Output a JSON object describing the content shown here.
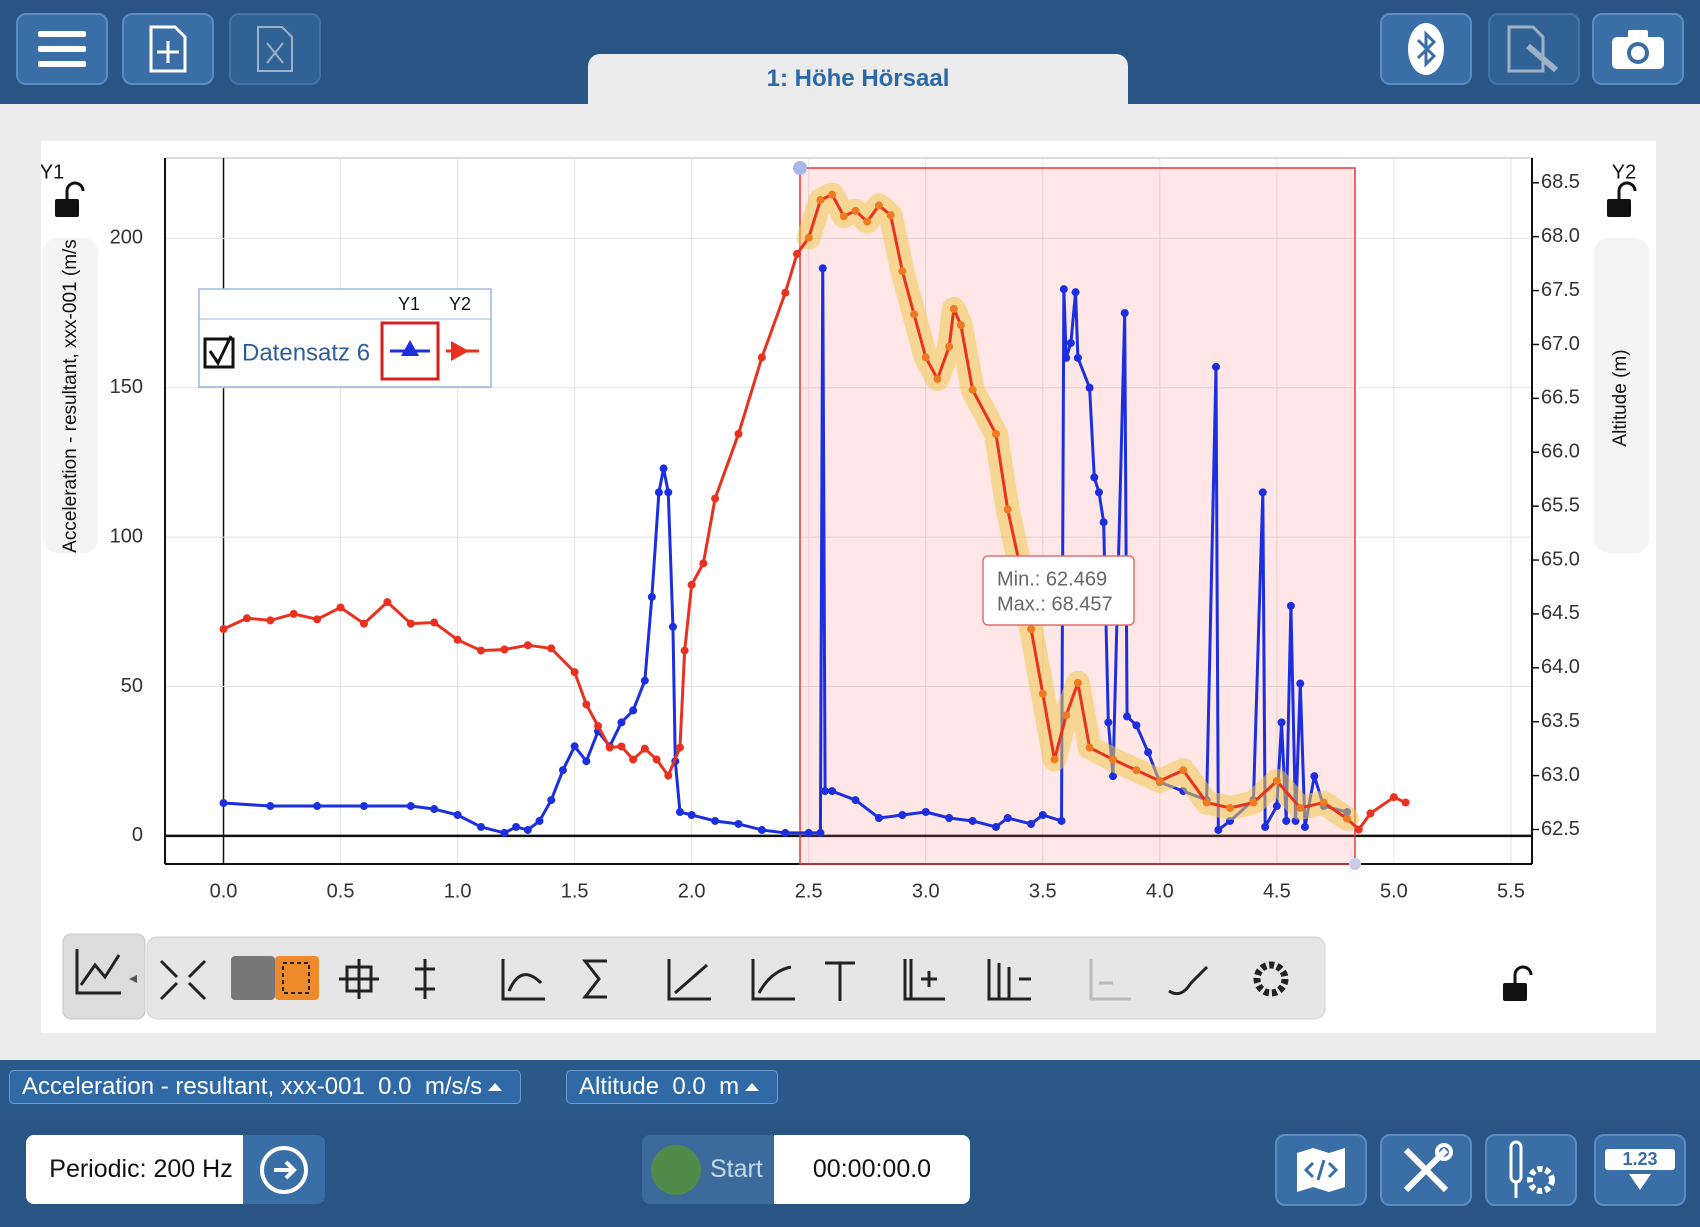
{
  "header": {
    "tab_title": "1: Höhe Hörsaal"
  },
  "chart_data": {
    "type": "line",
    "y_corner_label": "Y1",
    "y2_corner_label": "Y2",
    "ylabel": "Acceleration - resultant, xxx-001 (m/s",
    "y2label": "Altitude (m)",
    "xlim": [
      -0.25,
      5.59
    ],
    "ylim": [
      -9.4,
      226.9
    ],
    "y2lim": [
      62.18,
      68.73
    ],
    "xticks": [
      {
        "value": 0,
        "label": "0.0"
      },
      0.5,
      {
        "value": 1,
        "label": "1.0"
      },
      1.5,
      {
        "value": 2,
        "label": "2.0"
      },
      2.5,
      {
        "value": 3,
        "label": "3.0"
      },
      3.5,
      {
        "value": 4,
        "label": "4.0"
      },
      4.5,
      {
        "value": 5,
        "label": "5.0"
      },
      5.5
    ],
    "yticks": [
      0,
      50,
      100,
      150,
      200
    ],
    "y2ticks": [
      62.5,
      {
        "value": 63,
        "label": "63.0"
      },
      63.5,
      {
        "value": 64,
        "label": "64.0"
      },
      64.5,
      {
        "value": 65,
        "label": "65.0"
      },
      65.5,
      {
        "value": 66,
        "label": "66.0"
      },
      66.5,
      {
        "value": 67,
        "label": "67.0"
      },
      67.5,
      {
        "value": 68,
        "label": "68.0"
      },
      68.5
    ],
    "grid": true,
    "legend": {
      "name": "Datensatz 6",
      "headers": [
        "Y1",
        "Y2"
      ],
      "position": "upper left"
    },
    "annotations": [
      "Min.: 62.469",
      "Max.: 68.457"
    ],
    "series": [
      {
        "color": "#1c2fe0",
        "axis": "y",
        "x": [
          0,
          0.2,
          0.4,
          0.6,
          0.8,
          0.9,
          1.0,
          1.1,
          1.2,
          1.25,
          1.3,
          1.35,
          1.4,
          1.45,
          1.5,
          1.55,
          1.6,
          1.65,
          1.7,
          1.75,
          1.8,
          1.83,
          1.86,
          1.88,
          1.9,
          1.92,
          1.93,
          1.95,
          2.0,
          2.1,
          2.2,
          2.3,
          2.4,
          2.5,
          2.55,
          2.56,
          2.57,
          2.6,
          2.7,
          2.8,
          2.9,
          3.0,
          3.1,
          3.2,
          3.3,
          3.35,
          3.45,
          3.5,
          3.58,
          3.59,
          3.6,
          3.62,
          3.64,
          3.65,
          3.7,
          3.72,
          3.74,
          3.76,
          3.78,
          3.8,
          3.85,
          3.86,
          3.9,
          3.95,
          4.0,
          4.1,
          4.2,
          4.24,
          4.25,
          4.3,
          4.4,
          4.44,
          4.45,
          4.5,
          4.52,
          4.54,
          4.56,
          4.58,
          4.6,
          4.62,
          4.66,
          4.7,
          4.8
        ],
        "values": [
          11,
          10,
          10,
          10,
          10,
          9,
          7,
          3,
          1,
          3,
          2,
          5,
          12,
          22,
          30,
          25,
          35,
          30,
          38,
          42,
          52,
          80,
          115,
          123,
          115,
          70,
          25,
          8,
          7,
          5,
          4,
          2,
          1,
          1,
          1,
          190,
          15,
          15,
          12,
          6,
          7,
          8,
          6,
          5,
          3,
          6,
          4,
          7,
          5,
          183,
          160,
          165,
          182,
          160,
          150,
          120,
          115,
          105,
          38,
          20,
          175,
          40,
          37,
          28,
          18,
          15,
          12,
          157,
          2,
          5,
          12,
          115,
          3,
          10,
          38,
          5,
          77,
          5,
          51,
          3,
          20,
          10,
          8
        ]
      },
      {
        "color": "#e8321f",
        "axis": "y2",
        "x": [
          0,
          0.1,
          0.2,
          0.3,
          0.4,
          0.5,
          0.6,
          0.7,
          0.8,
          0.9,
          1.0,
          1.1,
          1.2,
          1.3,
          1.4,
          1.5,
          1.55,
          1.6,
          1.65,
          1.7,
          1.75,
          1.8,
          1.85,
          1.9,
          1.95,
          1.97,
          2.0,
          2.05,
          2.1,
          2.2,
          2.3,
          2.4,
          2.45,
          2.5,
          2.55,
          2.6,
          2.65,
          2.7,
          2.75,
          2.8,
          2.85,
          2.9,
          2.95,
          3.0,
          3.05,
          3.1,
          3.12,
          3.15,
          3.2,
          3.3,
          3.35,
          3.4,
          3.45,
          3.5,
          3.55,
          3.6,
          3.65,
          3.7,
          3.8,
          3.9,
          4.0,
          4.1,
          4.2,
          4.3,
          4.4,
          4.5,
          4.6,
          4.7,
          4.8,
          4.85,
          4.9,
          5.0,
          5.05
        ],
        "values": [
          64.36,
          64.46,
          64.44,
          64.5,
          64.45,
          64.56,
          64.41,
          64.61,
          64.41,
          64.42,
          64.26,
          64.16,
          64.17,
          64.21,
          64.18,
          63.96,
          63.66,
          63.46,
          63.26,
          63.27,
          63.15,
          63.25,
          63.15,
          63.0,
          63.26,
          64.16,
          64.77,
          64.97,
          65.57,
          66.17,
          66.88,
          67.48,
          67.84,
          67.99,
          68.34,
          68.39,
          68.19,
          68.24,
          68.14,
          68.29,
          68.2,
          67.68,
          67.28,
          66.88,
          66.68,
          66.98,
          67.33,
          67.18,
          66.58,
          66.17,
          65.47,
          64.97,
          64.36,
          63.76,
          63.15,
          63.56,
          63.86,
          63.26,
          63.15,
          63.05,
          62.95,
          63.05,
          62.75,
          62.7,
          62.75,
          62.95,
          62.7,
          62.75,
          62.6,
          62.5,
          62.65,
          62.8,
          62.75
        ]
      }
    ]
  },
  "status": {
    "sensors": [
      "Acceleration - resultant, xxx-001  0.0  m/s/s",
      "Altitude  0.0  m"
    ]
  },
  "footer": {
    "rate": "Periodic: 200 Hz",
    "start": "Start",
    "timer": "00:00:00.0",
    "display_label": "1.23"
  }
}
